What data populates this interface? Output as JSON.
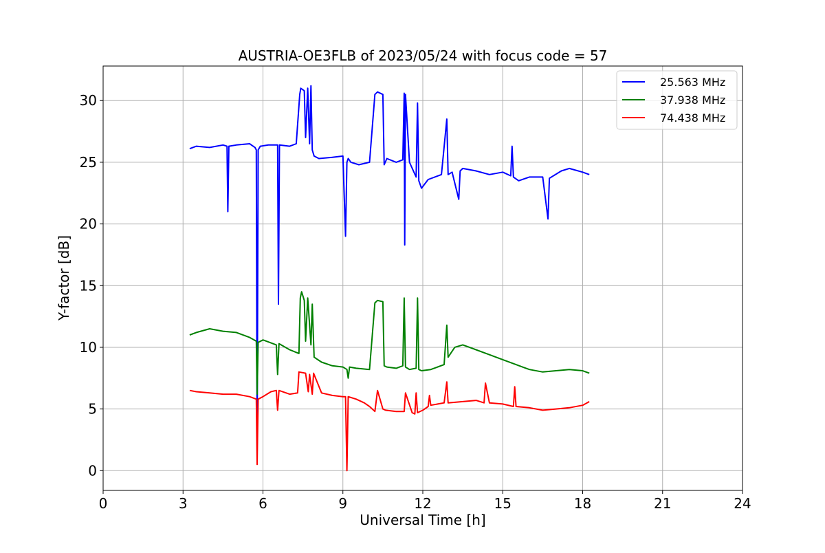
{
  "chart_data": {
    "type": "line",
    "title": "AUSTRIA-OE3FLB of 2023/05/24 with focus code = 57",
    "xlabel": "Universal Time [h]",
    "ylabel": "Y-factor [dB]",
    "xlim": [
      0,
      24
    ],
    "ylim": [
      -1.6,
      32.8
    ],
    "xticks": [
      0,
      3,
      6,
      9,
      12,
      15,
      18,
      21,
      24
    ],
    "yticks": [
      0,
      5,
      10,
      15,
      20,
      25,
      30
    ],
    "grid": true,
    "legend_position": "top-right",
    "series": [
      {
        "name": "25.563 MHz",
        "color": "#0000ff",
        "x": [
          3.25,
          3.5,
          4.0,
          4.5,
          4.65,
          4.68,
          4.72,
          5.0,
          5.5,
          5.7,
          5.75,
          5.78,
          5.82,
          5.9,
          6.2,
          6.55,
          6.58,
          6.62,
          7.0,
          7.25,
          7.38,
          7.42,
          7.55,
          7.6,
          7.68,
          7.75,
          7.8,
          7.85,
          7.92,
          8.1,
          8.6,
          9.0,
          9.1,
          9.15,
          9.2,
          9.3,
          9.6,
          10.0,
          10.2,
          10.3,
          10.5,
          10.55,
          10.65,
          11.0,
          11.25,
          11.3,
          11.32,
          11.35,
          11.5,
          11.75,
          11.8,
          11.85,
          11.95,
          12.2,
          12.7,
          12.9,
          12.95,
          13.1,
          13.35,
          13.4,
          13.5,
          14.0,
          14.5,
          15.0,
          15.3,
          15.35,
          15.4,
          15.6,
          16.0,
          16.5,
          16.7,
          16.75,
          17.2,
          17.5,
          18.0,
          18.25
        ],
        "y": [
          26.1,
          26.3,
          26.2,
          26.4,
          26.3,
          21.0,
          26.3,
          26.4,
          26.5,
          26.2,
          26.0,
          1.5,
          26.0,
          26.3,
          26.4,
          26.4,
          13.5,
          26.4,
          26.3,
          26.5,
          30.5,
          31.0,
          30.8,
          27.0,
          31.0,
          26.5,
          31.2,
          26.0,
          25.5,
          25.3,
          25.4,
          25.5,
          19.0,
          25.0,
          25.3,
          25.0,
          24.8,
          25.0,
          30.5,
          30.7,
          30.5,
          24.8,
          25.3,
          25.0,
          25.2,
          30.6,
          18.3,
          30.5,
          25.0,
          23.8,
          29.8,
          23.5,
          22.9,
          23.6,
          24.0,
          28.5,
          24.0,
          24.2,
          22.0,
          24.3,
          24.5,
          24.3,
          24.0,
          24.2,
          23.9,
          26.3,
          23.8,
          23.5,
          23.8,
          23.8,
          20.4,
          23.7,
          24.3,
          24.5,
          24.2,
          24.0
        ]
      },
      {
        "name": "37.938 MHz",
        "color": "#008000",
        "x": [
          3.25,
          3.5,
          4.0,
          4.5,
          5.0,
          5.5,
          5.75,
          5.78,
          5.82,
          6.0,
          6.5,
          6.55,
          6.6,
          7.0,
          7.35,
          7.4,
          7.45,
          7.55,
          7.6,
          7.68,
          7.8,
          7.85,
          7.92,
          8.2,
          8.6,
          9.0,
          9.15,
          9.2,
          9.25,
          9.5,
          10.0,
          10.2,
          10.3,
          10.5,
          10.55,
          10.65,
          11.0,
          11.25,
          11.3,
          11.35,
          11.5,
          11.75,
          11.8,
          11.85,
          11.95,
          12.3,
          12.8,
          12.9,
          12.95,
          13.2,
          13.5,
          14.0,
          14.5,
          15.0,
          15.5,
          16.0,
          16.5,
          17.0,
          17.5,
          18.0,
          18.25
        ],
        "y": [
          11.0,
          11.2,
          11.5,
          11.3,
          11.2,
          10.8,
          10.5,
          6.2,
          10.4,
          10.6,
          10.2,
          7.8,
          10.3,
          9.8,
          9.5,
          14.0,
          14.5,
          13.8,
          10.5,
          14.0,
          10.2,
          13.5,
          9.2,
          8.8,
          8.5,
          8.4,
          8.2,
          7.5,
          8.4,
          8.3,
          8.2,
          13.6,
          13.8,
          13.7,
          8.5,
          8.4,
          8.3,
          8.5,
          14.0,
          8.4,
          8.2,
          8.3,
          14.0,
          8.2,
          8.1,
          8.2,
          8.6,
          11.8,
          9.2,
          10.0,
          10.2,
          9.8,
          9.4,
          9.0,
          8.6,
          8.2,
          8.0,
          8.1,
          8.2,
          8.1,
          7.9
        ]
      },
      {
        "name": "74.438 MHz",
        "color": "#ff0000",
        "x": [
          3.25,
          3.5,
          4.0,
          4.5,
          5.0,
          5.5,
          5.75,
          5.78,
          5.82,
          6.0,
          6.3,
          6.5,
          6.55,
          6.6,
          7.0,
          7.3,
          7.35,
          7.6,
          7.7,
          7.75,
          7.85,
          7.9,
          8.2,
          8.6,
          9.0,
          9.1,
          9.15,
          9.2,
          9.5,
          9.8,
          10.0,
          10.2,
          10.3,
          10.5,
          10.6,
          11.0,
          11.3,
          11.35,
          11.6,
          11.7,
          11.75,
          11.8,
          12.0,
          12.2,
          12.25,
          12.3,
          12.8,
          12.9,
          12.95,
          13.5,
          14.0,
          14.3,
          14.35,
          14.5,
          15.0,
          15.4,
          15.45,
          15.5,
          16.0,
          16.5,
          17.0,
          17.5,
          18.0,
          18.25
        ],
        "y": [
          6.5,
          6.4,
          6.3,
          6.2,
          6.2,
          6.0,
          5.8,
          0.5,
          5.8,
          6.0,
          6.4,
          6.5,
          4.9,
          6.5,
          6.2,
          6.3,
          8.0,
          7.9,
          6.4,
          7.8,
          6.2,
          7.9,
          6.3,
          6.1,
          6.0,
          6.0,
          0.0,
          6.0,
          5.8,
          5.5,
          5.2,
          4.8,
          6.5,
          5.0,
          4.9,
          4.8,
          4.8,
          6.3,
          4.7,
          4.6,
          6.3,
          4.7,
          4.9,
          5.2,
          6.1,
          5.3,
          5.5,
          7.2,
          5.5,
          5.6,
          5.7,
          5.5,
          7.1,
          5.5,
          5.4,
          5.2,
          6.8,
          5.2,
          5.1,
          4.9,
          5.0,
          5.1,
          5.3,
          5.6
        ]
      }
    ]
  }
}
